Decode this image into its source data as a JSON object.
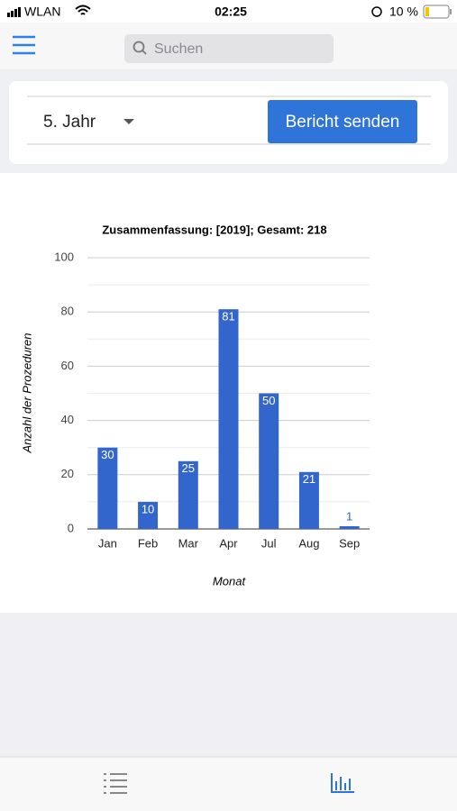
{
  "status_bar": {
    "carrier": "WLAN",
    "time": "02:25",
    "battery": "10 %"
  },
  "header": {
    "search_placeholder": "Suchen"
  },
  "controls": {
    "period": "5. Jahr",
    "send_button": "Bericht senden"
  },
  "chart_data": {
    "type": "bar",
    "title": "Zusammenfassung: [2019]; Gesamt: 218",
    "x_label": "Monat",
    "y_label": "Anzahl der Prozeduren",
    "categories": [
      "Jan",
      "Feb",
      "Mar",
      "Apr",
      "Jul",
      "Aug",
      "Sep"
    ],
    "values": [
      30,
      10,
      25,
      81,
      50,
      21,
      1
    ],
    "color": "#3366cc",
    "ylim": [
      0,
      100
    ],
    "yticks": [
      0,
      20,
      40,
      60,
      80,
      100
    ],
    "grid": true
  }
}
